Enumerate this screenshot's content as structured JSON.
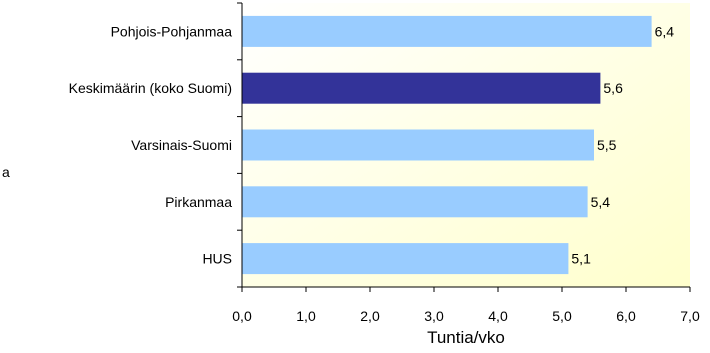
{
  "chart_data": {
    "type": "bar",
    "orientation": "horizontal",
    "categories": [
      "Pohjois-Pohjanmaa",
      "Keskimäärin (koko Suomi)",
      "Varsinais-Suomi",
      "Pirkanmaa",
      "HUS"
    ],
    "values": [
      6.4,
      5.6,
      5.5,
      5.4,
      5.1
    ],
    "data_labels": [
      "6,4",
      "5,6",
      "5,5",
      "5,4",
      "5,1"
    ],
    "highlight_index": 1,
    "xlabel": "Tuntia/vko",
    "xlim": [
      0,
      7
    ],
    "xticks": [
      "0,0",
      "1,0",
      "2,0",
      "3,0",
      "4,0",
      "5,0",
      "6,0",
      "7,0"
    ],
    "title": "",
    "legend": "none",
    "grid": false
  },
  "stray_text": "a",
  "colors": {
    "bar": "#99ccff",
    "highlight_bar": "#333399",
    "plot_bg_start": "#ffffff",
    "plot_bg_end": "#ffffcc",
    "axis": "#000000"
  }
}
